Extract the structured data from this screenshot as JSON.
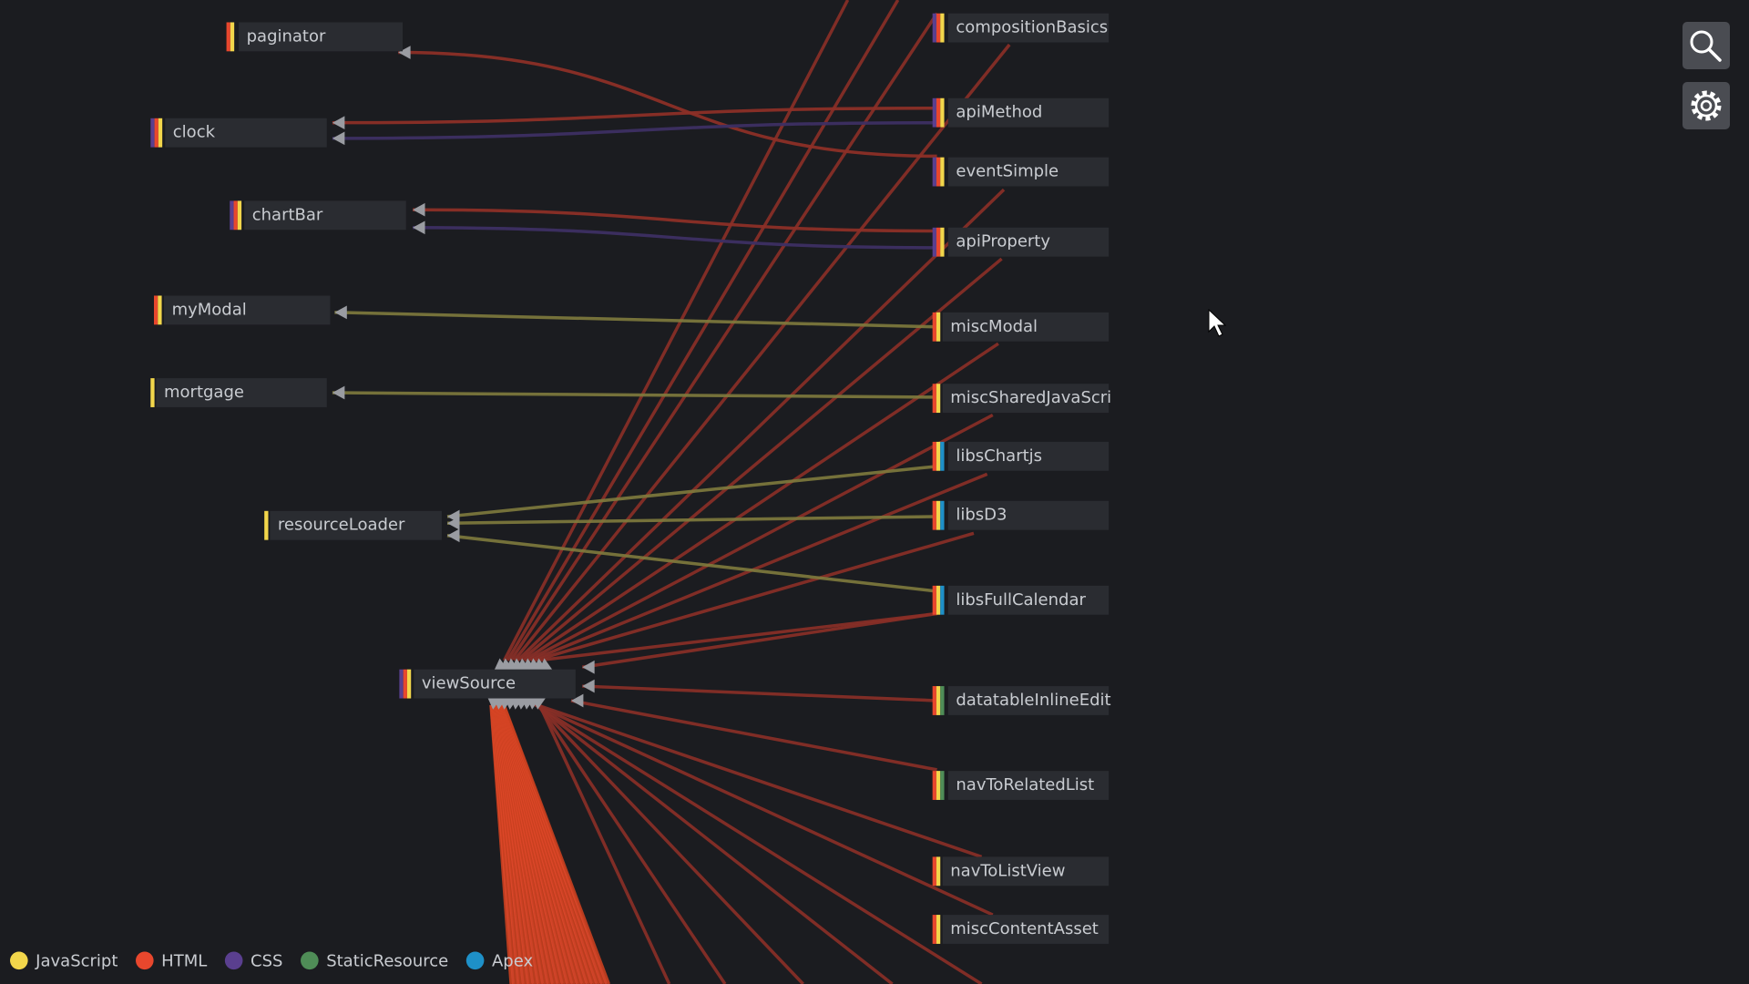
{
  "nodes": [
    {
      "label": "paginator"
    },
    {
      "label": "clock"
    },
    {
      "label": "chartBar"
    },
    {
      "label": "myModal"
    },
    {
      "label": "mortgage"
    },
    {
      "label": "resourceLoader"
    },
    {
      "label": "viewSource"
    },
    {
      "label": "compositionBasics"
    },
    {
      "label": "apiMethod"
    },
    {
      "label": "eventSimple"
    },
    {
      "label": "apiProperty"
    },
    {
      "label": "miscModal"
    },
    {
      "label": "miscSharedJavaScri"
    },
    {
      "label": "libsChartjs"
    },
    {
      "label": "libsD3"
    },
    {
      "label": "libsFullCalendar"
    },
    {
      "label": "datatableInlineEdit"
    },
    {
      "label": "navToRelatedList"
    },
    {
      "label": "navToListView"
    },
    {
      "label": "miscContentAsset"
    }
  ],
  "legend": [
    {
      "label": "JavaScript",
      "color": "#f2d64b"
    },
    {
      "label": "HTML",
      "color": "#e8472d"
    },
    {
      "label": "CSS",
      "color": "#5a3f8f"
    },
    {
      "label": "StaticResource",
      "color": "#4f8d57"
    },
    {
      "label": "Apex",
      "color": "#1e90c8"
    }
  ]
}
